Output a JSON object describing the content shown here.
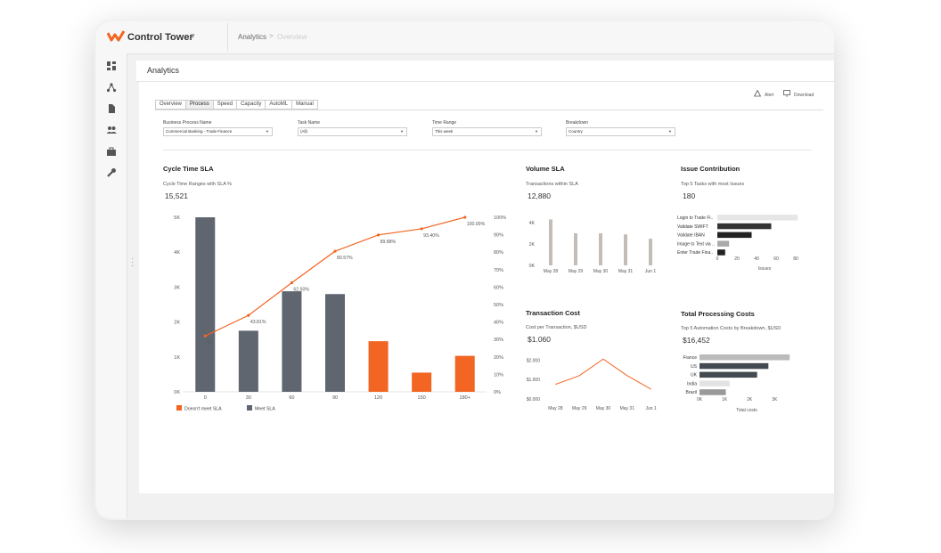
{
  "app": {
    "title": "Control Tower",
    "caret": "▾"
  },
  "breadcrumb": {
    "current": "Analytics",
    "sep": ">",
    "next": "Overview"
  },
  "page": {
    "title": "Analytics"
  },
  "actions": {
    "alert": "Alert",
    "download": "Download"
  },
  "tabs": [
    "Overview",
    "Process",
    "Speed",
    "Capacity",
    "AutoML",
    "Manual"
  ],
  "active_tab": "Process",
  "filters": [
    {
      "label": "Business Process Name",
      "value": "Commercial Banking - Trade Finance"
    },
    {
      "label": "Task Name",
      "value": "(All)"
    },
    {
      "label": "Time Range",
      "value": "This week"
    },
    {
      "label": "Breakdown",
      "value": "Country"
    }
  ],
  "cards": {
    "cycle": {
      "title": "Cycle Time SLA",
      "subtitle": "Cycle Time Ranges with SLA %",
      "value": "15,521"
    },
    "volume": {
      "title": "Volume SLA",
      "subtitle": "Transactions within SLA",
      "value": "12,880"
    },
    "issue": {
      "title": "Issue Contribution",
      "subtitle": "Top 5 Tasks with most Issues",
      "value": "180"
    },
    "cost": {
      "title": "Transaction Cost",
      "subtitle": "Cost per Transaction, $USD",
      "value": "$1.060"
    },
    "processing": {
      "title": "Total Processing Costs",
      "subtitle": "Top 5 Automation Costs by Breakdown, $USD",
      "value": "$16,452"
    }
  },
  "colors": {
    "dark": "#5f6670",
    "orange": "#f26522",
    "taupe": "#c4bdb7",
    "black": "#222222",
    "light": "#e6e6e6",
    "gray": "#aaaaaa"
  },
  "chart_data": [
    {
      "type": "bar",
      "name_ref": "Cycle Time SLA",
      "categories": [
        "0",
        "30",
        "60",
        "90",
        "120",
        "150",
        "180+"
      ],
      "series": [
        {
          "name": "Meet SLA",
          "values": [
            5000,
            1750,
            2880,
            2800,
            null,
            null,
            null
          ]
        },
        {
          "name": "Doesn't meet SLA",
          "values": [
            null,
            null,
            null,
            null,
            1450,
            550,
            1030
          ]
        }
      ],
      "line": {
        "values": [
          32,
          43.81,
          62.5,
          80.57,
          89.88,
          93.4,
          100.0
        ],
        "labels": [
          "%",
          "43.81%",
          "62.50%",
          "80.57%",
          "89.88%",
          "93.40%",
          "100.00%"
        ]
      },
      "yticks": [
        "0K",
        "1K",
        "2K",
        "3K",
        "4K",
        "5K"
      ],
      "y2ticks": [
        "0%",
        "10%",
        "20%",
        "30%",
        "40%",
        "50%",
        "60%",
        "70%",
        "80%",
        "90%",
        "100%"
      ],
      "ylim": [
        0,
        5000
      ],
      "y2lim": [
        0,
        100
      ],
      "legend": [
        "Doesn't meet SLA",
        "Meet SLA"
      ]
    },
    {
      "type": "bar",
      "categories": [
        "May 28",
        "May 29",
        "May 30",
        "May 31",
        "Jun 1"
      ],
      "values": [
        4300,
        3000,
        3000,
        2900,
        2500
      ],
      "yticks": [
        "0K",
        "2K",
        "4K"
      ],
      "ylim": [
        0,
        5000
      ]
    },
    {
      "type": "bar",
      "orientation": "horizontal",
      "categories": [
        "Login to Trade Fi..",
        "Validate SWIFT",
        "Validate IBAN",
        "Image to Text via ..",
        "Enter Trade Fina.."
      ],
      "values": [
        82,
        55,
        35,
        12,
        8
      ],
      "xticks": [
        "0",
        "20",
        "40",
        "60",
        "80"
      ],
      "xlim": [
        0,
        80
      ],
      "xlabel": "Issues"
    },
    {
      "type": "line",
      "categories": [
        "May 28",
        "May 29",
        "May 30",
        "May 31",
        "Jun 1"
      ],
      "values": [
        0.75,
        1.2,
        2.05,
        1.2,
        0.5
      ],
      "yticks": [
        "$0.000",
        "$1.000",
        "$2.000"
      ],
      "ylim": [
        0,
        2.2
      ]
    },
    {
      "type": "bar",
      "orientation": "horizontal",
      "categories": [
        "France",
        "US",
        "UK",
        "India",
        "Brazil"
      ],
      "values": [
        3600,
        2750,
        2300,
        1200,
        1050
      ],
      "xticks": [
        "0K",
        "1K",
        "2K",
        "3K"
      ],
      "xlim": [
        0,
        3700
      ],
      "xlabel": "Total costs"
    }
  ]
}
